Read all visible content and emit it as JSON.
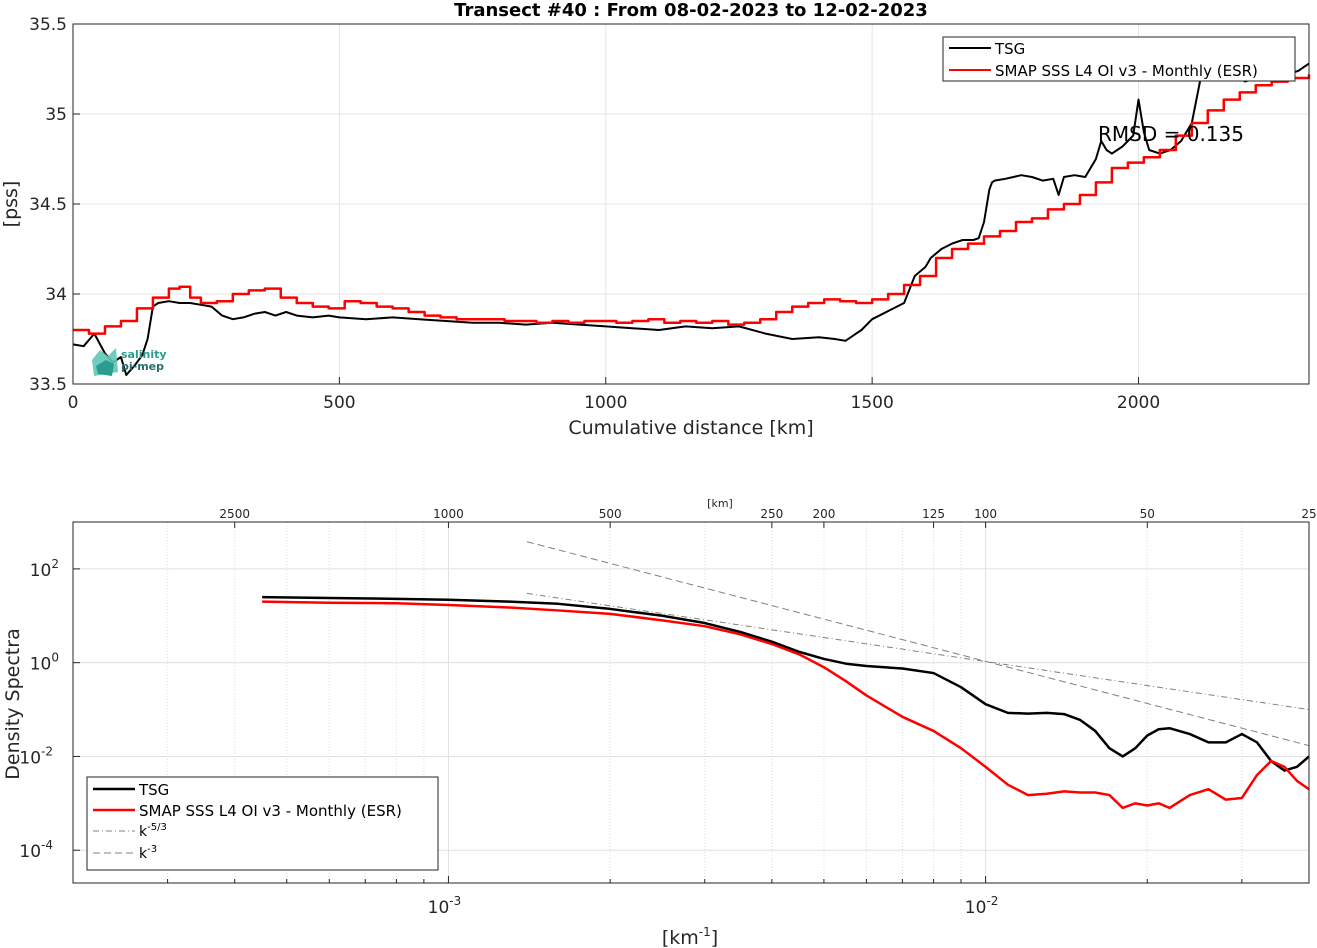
{
  "chart_data": [
    {
      "type": "line",
      "title": "Transect #40 : From 08-02-2023 to 12-02-2023",
      "xlabel": "Cumulative distance [km]",
      "ylabel": "[pss]",
      "xlim": [
        0,
        2320
      ],
      "ylim": [
        33.5,
        35.5
      ],
      "xticks": [
        0,
        500,
        1000,
        1500,
        2000
      ],
      "yticks": [
        33.5,
        34,
        34.5,
        35,
        35.5
      ],
      "xtick_labels": [
        "0",
        "500",
        "1000",
        "1500",
        "2000"
      ],
      "ytick_labels": [
        "33.5",
        "34",
        "34.5",
        "35",
        "35.5"
      ],
      "grid": true,
      "legend": "top-right",
      "annotation": "RMSD = 0.135",
      "logo_text": "salinity pi-mep",
      "series": [
        {
          "name": "TSG",
          "color": "#000000",
          "x": [
            0,
            20,
            40,
            60,
            75,
            90,
            100,
            115,
            130,
            140,
            150,
            160,
            180,
            200,
            220,
            240,
            260,
            280,
            300,
            320,
            340,
            360,
            380,
            400,
            420,
            450,
            480,
            500,
            550,
            600,
            650,
            700,
            750,
            800,
            850,
            900,
            950,
            1000,
            1050,
            1100,
            1150,
            1200,
            1250,
            1300,
            1350,
            1400,
            1430,
            1450,
            1470,
            1480,
            1500,
            1520,
            1540,
            1560,
            1580,
            1600,
            1610,
            1630,
            1650,
            1670,
            1690,
            1700,
            1710,
            1720,
            1725,
            1730,
            1750,
            1780,
            1800,
            1820,
            1840,
            1850,
            1860,
            1880,
            1900,
            1910,
            1920,
            1930,
            1940,
            1950,
            1960,
            1970,
            1980,
            1990,
            2000,
            2010,
            2020,
            2040,
            2060,
            2080,
            2100,
            2110,
            2120,
            2130,
            2140,
            2150,
            2160,
            2180,
            2200,
            2220,
            2240,
            2260,
            2280,
            2300,
            2320
          ],
          "y": [
            33.72,
            33.71,
            33.78,
            33.67,
            33.62,
            33.65,
            33.55,
            33.6,
            33.66,
            33.75,
            33.93,
            33.95,
            33.96,
            33.95,
            33.95,
            33.94,
            33.93,
            33.88,
            33.86,
            33.87,
            33.89,
            33.9,
            33.88,
            33.9,
            33.88,
            33.87,
            33.88,
            33.87,
            33.86,
            33.87,
            33.86,
            33.85,
            33.84,
            33.84,
            33.83,
            33.84,
            33.83,
            33.82,
            33.81,
            33.8,
            33.82,
            33.81,
            33.82,
            33.78,
            33.75,
            33.76,
            33.75,
            33.74,
            33.78,
            33.8,
            33.86,
            33.89,
            33.92,
            33.95,
            34.1,
            34.15,
            34.2,
            34.25,
            34.28,
            34.3,
            34.3,
            34.31,
            34.4,
            34.58,
            34.62,
            34.63,
            34.64,
            34.66,
            34.65,
            34.63,
            34.64,
            34.55,
            34.65,
            34.66,
            34.65,
            34.7,
            34.75,
            34.85,
            34.8,
            34.78,
            34.8,
            34.82,
            34.85,
            34.88,
            35.08,
            34.9,
            34.8,
            34.78,
            34.8,
            34.85,
            34.95,
            35.1,
            35.25,
            35.3,
            35.26,
            35.25,
            35.2,
            35.22,
            35.18,
            35.2,
            35.22,
            35.2,
            35.22,
            35.24,
            35.28
          ]
        },
        {
          "name": "SMAP SSS L4 OI v3 - Monthly (ESR)",
          "color": "#ff0000",
          "x": [
            0,
            30,
            60,
            90,
            120,
            150,
            180,
            200,
            220,
            240,
            270,
            300,
            330,
            360,
            390,
            420,
            450,
            480,
            510,
            540,
            570,
            600,
            630,
            660,
            690,
            720,
            750,
            780,
            810,
            840,
            870,
            900,
            930,
            960,
            990,
            1020,
            1050,
            1080,
            1110,
            1140,
            1170,
            1200,
            1230,
            1260,
            1290,
            1320,
            1350,
            1380,
            1410,
            1440,
            1470,
            1500,
            1530,
            1560,
            1590,
            1620,
            1650,
            1680,
            1710,
            1740,
            1770,
            1800,
            1830,
            1860,
            1890,
            1920,
            1950,
            1980,
            2010,
            2040,
            2070,
            2100,
            2130,
            2160,
            2190,
            2220,
            2250,
            2280,
            2320
          ],
          "y": [
            33.8,
            33.78,
            33.82,
            33.85,
            33.92,
            33.98,
            34.03,
            34.04,
            33.98,
            33.95,
            33.96,
            34.0,
            34.02,
            34.03,
            33.98,
            33.95,
            33.93,
            33.92,
            33.96,
            33.95,
            33.93,
            33.92,
            33.9,
            33.88,
            33.87,
            33.86,
            33.86,
            33.86,
            33.85,
            33.85,
            33.84,
            33.85,
            33.84,
            33.85,
            33.85,
            33.84,
            33.85,
            33.86,
            33.84,
            33.85,
            33.84,
            33.85,
            33.83,
            33.84,
            33.86,
            33.9,
            33.93,
            33.95,
            33.97,
            33.96,
            33.95,
            33.97,
            34.0,
            34.05,
            34.1,
            34.2,
            34.25,
            34.28,
            34.32,
            34.35,
            34.4,
            34.42,
            34.47,
            34.5,
            34.55,
            34.62,
            34.7,
            34.73,
            34.76,
            34.8,
            34.88,
            34.95,
            35.02,
            35.08,
            35.12,
            35.16,
            35.18,
            35.2,
            35.22
          ]
        }
      ]
    },
    {
      "type": "line",
      "xlabel": "[km-1]",
      "ylabel": "Density Spectra",
      "x_scale": "log",
      "y_scale": "log",
      "xlim": [
        0.0002,
        0.04
      ],
      "ylim": [
        2e-05,
        1000
      ],
      "xtick_labels": [
        "10-3",
        "10-2"
      ],
      "ytick_labels": [
        "10-4",
        "10-2",
        "100",
        "102"
      ],
      "top_axis_label": "[km]",
      "top_axis_ticks": [
        2500,
        1000,
        500,
        250,
        200,
        125,
        100,
        50,
        25
      ],
      "top_axis_labels": [
        "2500",
        "1000",
        "500",
        "250",
        "200",
        "125",
        "100",
        "50",
        "25"
      ],
      "grid": true,
      "legend": "bottom-left",
      "series": [
        {
          "name": "TSG",
          "color": "#000000",
          "x": [
            0.00045,
            0.0006,
            0.0008,
            0.001,
            0.0013,
            0.0016,
            0.002,
            0.0025,
            0.003,
            0.0035,
            0.004,
            0.0045,
            0.005,
            0.0055,
            0.006,
            0.007,
            0.008,
            0.009,
            0.01,
            0.011,
            0.012,
            0.013,
            0.014,
            0.015,
            0.016,
            0.017,
            0.018,
            0.019,
            0.02,
            0.021,
            0.022,
            0.024,
            0.026,
            0.028,
            0.03,
            0.032,
            0.034,
            0.036,
            0.038,
            0.04
          ],
          "y": [
            25,
            24,
            23,
            22,
            20,
            18,
            14,
            10,
            7,
            4.5,
            2.8,
            1.7,
            1.2,
            0.95,
            0.85,
            0.75,
            0.6,
            0.3,
            0.13,
            0.085,
            0.082,
            0.085,
            0.08,
            0.06,
            0.035,
            0.015,
            0.01,
            0.015,
            0.028,
            0.038,
            0.04,
            0.03,
            0.02,
            0.02,
            0.03,
            0.02,
            0.008,
            0.005,
            0.006,
            0.01
          ]
        },
        {
          "name": "SMAP SSS L4 OI v3 - Monthly (ESR)",
          "color": "#ff0000",
          "x": [
            0.00045,
            0.0006,
            0.0008,
            0.001,
            0.0013,
            0.0016,
            0.002,
            0.0025,
            0.003,
            0.0035,
            0.004,
            0.0045,
            0.005,
            0.0055,
            0.006,
            0.007,
            0.008,
            0.009,
            0.01,
            0.011,
            0.012,
            0.013,
            0.014,
            0.015,
            0.016,
            0.017,
            0.018,
            0.019,
            0.02,
            0.021,
            0.022,
            0.024,
            0.026,
            0.028,
            0.03,
            0.032,
            0.034,
            0.036,
            0.038,
            0.04
          ],
          "y": [
            20,
            19,
            18.5,
            17,
            15,
            13,
            11,
            8,
            6,
            4,
            2.5,
            1.5,
            0.8,
            0.4,
            0.2,
            0.07,
            0.035,
            0.015,
            0.006,
            0.0025,
            0.0015,
            0.0016,
            0.0018,
            0.0017,
            0.0017,
            0.0015,
            0.0008,
            0.001,
            0.0009,
            0.001,
            0.0008,
            0.0015,
            0.002,
            0.0012,
            0.0013,
            0.004,
            0.008,
            0.006,
            0.003,
            0.002
          ]
        },
        {
          "name": "k-5/3",
          "color": "#808080",
          "x": [
            0.0014,
            0.04
          ],
          "y": [
            30,
            0.1
          ]
        },
        {
          "name": "k-3",
          "color": "#808080",
          "x": [
            0.0014,
            0.04
          ],
          "y": [
            380,
            0.017
          ]
        }
      ]
    }
  ]
}
